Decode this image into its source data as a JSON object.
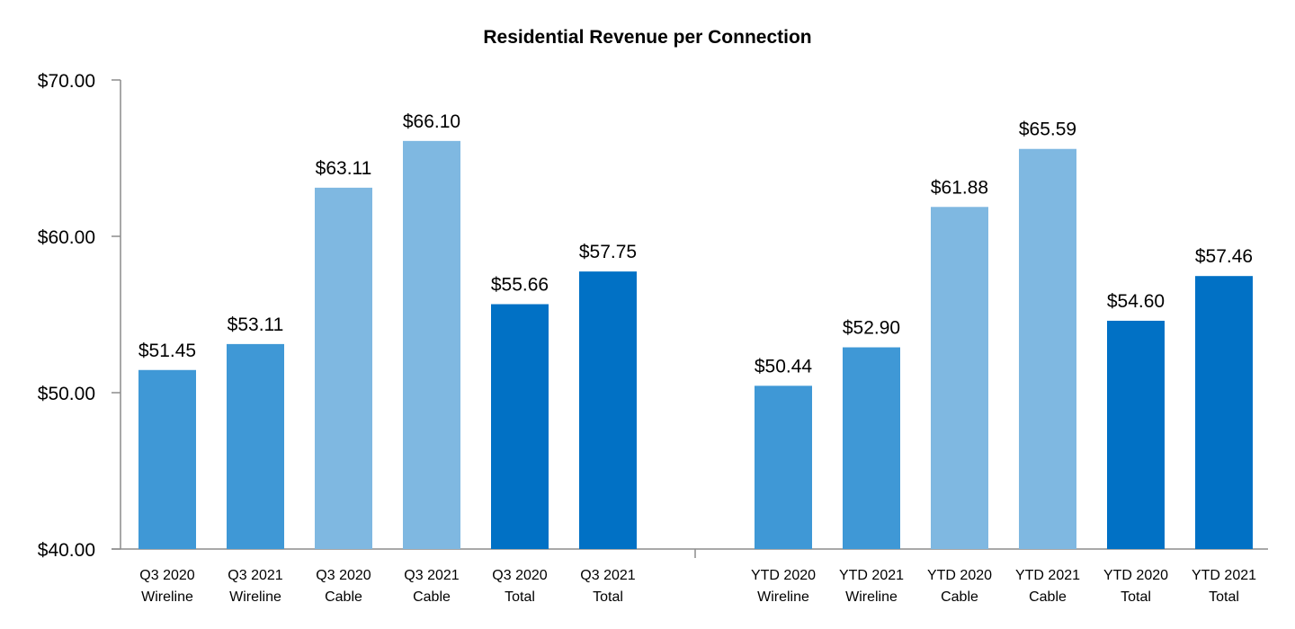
{
  "chart_data": {
    "type": "bar",
    "title": "Residential Revenue per Connection",
    "xlabel": "",
    "ylabel": "",
    "ylim": [
      40,
      70
    ],
    "yticks": [
      40,
      50,
      60,
      70
    ],
    "ytick_labels": [
      "$40.00",
      "$50.00",
      "$60.00",
      "$70.00"
    ],
    "grid": false,
    "legend": "none",
    "colors": {
      "wireline": "#3f98d6",
      "cable": "#7fb8e1",
      "total": "#0171c5",
      "axis": "#8c8c8c"
    },
    "groups": [
      {
        "name": "Q3",
        "bars": [
          {
            "label": [
              "Q3 2020",
              "Wireline"
            ],
            "value": 51.45,
            "value_label": "$51.45",
            "category": "wireline"
          },
          {
            "label": [
              "Q3 2021",
              "Wireline"
            ],
            "value": 53.11,
            "value_label": "$53.11",
            "category": "wireline"
          },
          {
            "label": [
              "Q3 2020",
              "Cable"
            ],
            "value": 63.11,
            "value_label": "$63.11",
            "category": "cable"
          },
          {
            "label": [
              "Q3 2021",
              "Cable"
            ],
            "value": 66.1,
            "value_label": "$66.10",
            "category": "cable"
          },
          {
            "label": [
              "Q3 2020",
              "Total"
            ],
            "value": 55.66,
            "value_label": "$55.66",
            "category": "total"
          },
          {
            "label": [
              "Q3 2021",
              "Total"
            ],
            "value": 57.75,
            "value_label": "$57.75",
            "category": "total"
          }
        ]
      },
      {
        "name": "YTD",
        "bars": [
          {
            "label": [
              "YTD 2020",
              "Wireline"
            ],
            "value": 50.44,
            "value_label": "$50.44",
            "category": "wireline"
          },
          {
            "label": [
              "YTD 2021",
              "Wireline"
            ],
            "value": 52.9,
            "value_label": "$52.90",
            "category": "wireline"
          },
          {
            "label": [
              "YTD 2020",
              "Cable"
            ],
            "value": 61.88,
            "value_label": "$61.88",
            "category": "cable"
          },
          {
            "label": [
              "YTD 2021",
              "Cable"
            ],
            "value": 65.59,
            "value_label": "$65.59",
            "category": "cable"
          },
          {
            "label": [
              "YTD 2020",
              "Total"
            ],
            "value": 54.6,
            "value_label": "$54.60",
            "category": "total"
          },
          {
            "label": [
              "YTD 2021",
              "Total"
            ],
            "value": 57.46,
            "value_label": "$57.46",
            "category": "total"
          }
        ]
      }
    ]
  }
}
